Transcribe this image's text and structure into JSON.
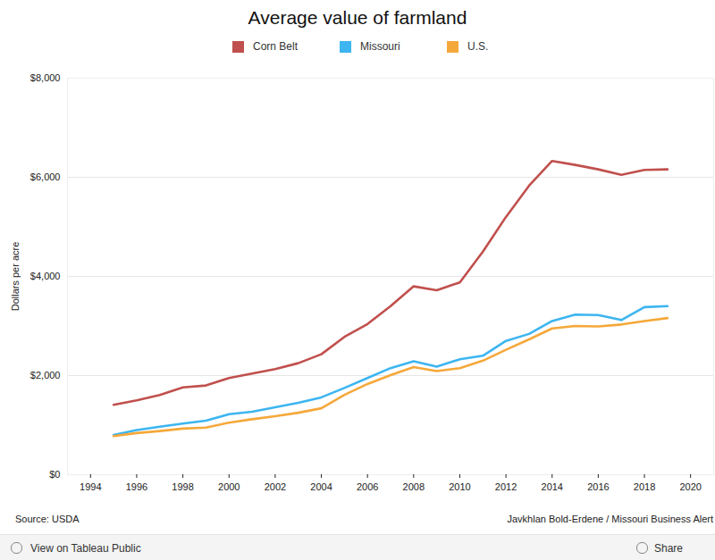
{
  "chart_data": {
    "type": "line",
    "title": "Average value of farmland",
    "y_label": "Dollars per acre",
    "source": "Source: USDA",
    "credit": "Javkhlan Bold-Erdene / Missouri Business Alert",
    "x": [
      1995,
      1996,
      1997,
      1998,
      1999,
      2000,
      2001,
      2002,
      2003,
      2004,
      2005,
      2006,
      2007,
      2008,
      2009,
      2010,
      2011,
      2012,
      2013,
      2014,
      2015,
      2016,
      2017,
      2018,
      2019
    ],
    "series": [
      {
        "name": "Corn Belt",
        "color": "#c0504d",
        "values": [
          1410,
          1500,
          1610,
          1760,
          1800,
          1950,
          2040,
          2130,
          2250,
          2430,
          2780,
          3040,
          3400,
          3800,
          3720,
          3880,
          4500,
          5200,
          5830,
          6330,
          6250,
          6160,
          6050,
          6150,
          6160
        ]
      },
      {
        "name": "Missouri",
        "color": "#3db5f0",
        "values": [
          800,
          900,
          970,
          1030,
          1090,
          1220,
          1270,
          1360,
          1450,
          1560,
          1750,
          1950,
          2150,
          2290,
          2180,
          2330,
          2400,
          2700,
          2840,
          3100,
          3230,
          3220,
          3120,
          3380,
          3400
        ]
      },
      {
        "name": "U.S.",
        "color": "#f5a83a",
        "values": [
          780,
          840,
          880,
          930,
          950,
          1050,
          1120,
          1180,
          1250,
          1340,
          1610,
          1830,
          2010,
          2170,
          2090,
          2150,
          2300,
          2520,
          2730,
          2950,
          3000,
          2990,
          3030,
          3100,
          3160
        ]
      }
    ],
    "xlim": [
      1993,
      2021
    ],
    "xticks": [
      1994,
      1996,
      1998,
      2000,
      2002,
      2004,
      2006,
      2008,
      2010,
      2012,
      2014,
      2016,
      2018,
      2020
    ],
    "ylim": [
      0,
      8000
    ],
    "yticks": [
      {
        "value": 0,
        "label": "$0"
      },
      {
        "value": 2000,
        "label": "$2,000"
      },
      {
        "value": 4000,
        "label": "$4,000"
      },
      {
        "value": 6000,
        "label": "$6,000"
      },
      {
        "value": 8000,
        "label": "$8,000"
      }
    ],
    "grid": true,
    "legend": "top"
  },
  "toolbar": {
    "left": "View on Tableau Public",
    "right": "Share"
  }
}
